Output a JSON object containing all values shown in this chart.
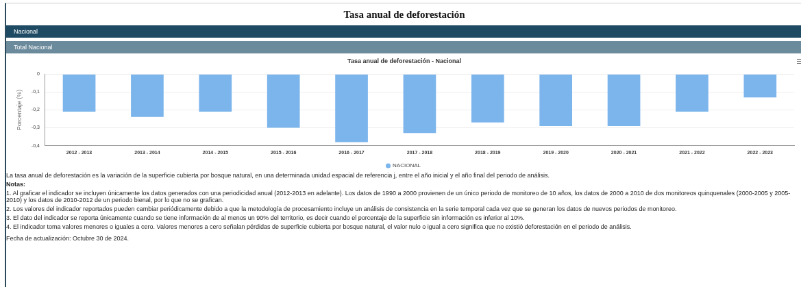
{
  "chart_data": {
    "type": "bar",
    "title": "Tasa anual de deforestación",
    "subtitle": "Tasa anual de deforestación - Nacional",
    "ylabel": "Porcentaje (%)",
    "categories": [
      "2012 - 2013",
      "2013 - 2014",
      "2014 - 2015",
      "2015 - 2016",
      "2016 - 2017",
      "2017 - 2018",
      "2018 - 2019",
      "2019 - 2020",
      "2020 - 2021",
      "2021 - 2022",
      "2022 - 2023"
    ],
    "series": [
      {
        "name": "NACIONAL",
        "color": "#7cb5ec",
        "values": [
          -0.21,
          -0.24,
          -0.21,
          -0.3,
          -0.38,
          -0.33,
          -0.27,
          -0.29,
          -0.29,
          -0.21,
          -0.13
        ]
      }
    ],
    "ylim": [
      -0.4,
      0
    ],
    "yticks": [
      {
        "value": -0.4,
        "label": "-0,4"
      },
      {
        "value": -0.3,
        "label": "-0,3"
      },
      {
        "value": -0.2,
        "label": "-0,2"
      },
      {
        "value": -0.1,
        "label": "-0,1"
      },
      0
    ],
    "grid": "y",
    "legend": "bottom",
    "annotations": [
      "Nacional",
      "Total Nacional",
      "La tasa anual de deforestación es la variación de la superficie cubierta por bosque natural, en una determinada unidad espacial de referencia j, entre el año inicial y el año final del periodo de análisis.",
      "Notas:",
      "1. Al graficar el indicador se incluyen únicamente los datos generados con una periodicidad anual (2012-2013 en adelante). Los datos de 1990 a 2000 provienen de un único periodo de monitoreo de 10 años, los datos de 2000 a 2010 de dos monitoreos quinquenales (2000-2005 y 2005-2010) y los datos de 2010-2012 de un periodo bienal, por lo que no se grafican.",
      "2. Los valores del indicador reportados pueden cambiar periódicamente debido a que la metodología de procesamiento incluye un análisis de consistencia en la serie temporal cada vez que se generan los datos de nuevos periodos de monitoreo.",
      "3. El dato del indicador se reporta únicamente cuando se tiene información de al menos un 90% del territorio, es decir cuando el porcentaje de la superficie sin información es inferior al 10%.",
      "4. El indicador toma valores menores o iguales a cero. Valores menores a cero señalan pérdidas de superficie cubierta por bosque natural, el valor nulo o igual a cero significa que no existió deforestación en el periodo de análisis.",
      "Fecha de actualización: Octubre 30 de 2024."
    ]
  }
}
